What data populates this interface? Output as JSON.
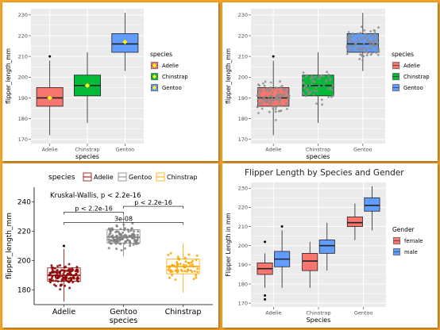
{
  "colors": {
    "page_bg": "#f6a326",
    "panel_bg": "#ffffff",
    "plot_bg": "#ebebeb",
    "grid": "#ffffff",
    "adelie": "#f8766d",
    "chinstrap": "#00ba38",
    "gentoo": "#619cff",
    "mean_marker": "#ffff00",
    "jitter_points": "#8c8c8c",
    "adelie_dark": "#8b0000",
    "gentoo_grey": "#808080",
    "chinstrap_orange": "#ffa500",
    "female": "#f8766d",
    "male": "#00bfc4"
  },
  "chart_data": [
    {
      "type": "box",
      "panel": "top-left",
      "xlabel": "species",
      "ylabel": "flipper_length_mm",
      "categories": [
        "Adelie",
        "Chinstrap",
        "Gentoo"
      ],
      "ylim": [
        168,
        233
      ],
      "yticks": [
        170,
        180,
        190,
        200,
        210,
        220,
        230
      ],
      "grid": true,
      "boxes": [
        {
          "category": "Adelie",
          "whisker_low": 172,
          "q1": 186,
          "median": 190,
          "q3": 195,
          "whisker_high": 208,
          "outliers": [
            210
          ],
          "mean": 190,
          "color": "#f8766d"
        },
        {
          "category": "Chinstrap",
          "whisker_low": 178,
          "q1": 191,
          "median": 196,
          "q3": 201,
          "whisker_high": 212,
          "outliers": [],
          "mean": 196,
          "color": "#00ba38"
        },
        {
          "category": "Gentoo",
          "whisker_low": 203,
          "q1": 212,
          "median": 216,
          "q3": 221,
          "whisker_high": 231,
          "outliers": [],
          "mean": 217,
          "color": "#619cff"
        }
      ],
      "legend": {
        "title": "species",
        "entries": [
          "Adelie",
          "Chinstrap",
          "Gentoo"
        ],
        "position": "right"
      }
    },
    {
      "type": "box",
      "panel": "top-right",
      "xlabel": "species",
      "ylabel": "flipper_length_mm",
      "categories": [
        "Adelie",
        "Chinstrap",
        "Gentoo"
      ],
      "ylim": [
        168,
        233
      ],
      "yticks": [
        170,
        180,
        190,
        200,
        210,
        220,
        230
      ],
      "grid": true,
      "jitter": true,
      "boxes": [
        {
          "category": "Adelie",
          "whisker_low": 172,
          "q1": 186,
          "median": 190,
          "q3": 195,
          "whisker_high": 208,
          "outliers": [
            210
          ],
          "color": "#f8766d"
        },
        {
          "category": "Chinstrap",
          "whisker_low": 178,
          "q1": 191,
          "median": 196,
          "q3": 201,
          "whisker_high": 212,
          "outliers": [],
          "color": "#00ba38"
        },
        {
          "category": "Gentoo",
          "whisker_low": 203,
          "q1": 212,
          "median": 216,
          "q3": 221,
          "whisker_high": 231,
          "outliers": [],
          "color": "#619cff"
        }
      ],
      "legend": {
        "title": "species",
        "entries": [
          "Adelie",
          "Chinstrap",
          "Gentoo"
        ],
        "position": "right"
      }
    },
    {
      "type": "box",
      "panel": "bottom-left",
      "xlabel": "species",
      "ylabel": "flipper_length_mm",
      "categories": [
        "Adelie",
        "Gentoo",
        "Chinstrap"
      ],
      "ylim": [
        170,
        250
      ],
      "yticks": [
        180,
        200,
        220,
        240
      ],
      "grid": false,
      "jitter": true,
      "boxes": [
        {
          "category": "Adelie",
          "whisker_low": 172,
          "q1": 186,
          "median": 190,
          "q3": 195,
          "whisker_high": 208,
          "outliers": [
            210
          ],
          "color": "#8b0000"
        },
        {
          "category": "Gentoo",
          "whisker_low": 203,
          "q1": 212,
          "median": 216,
          "q3": 221,
          "whisker_high": 231,
          "outliers": [],
          "color": "#808080"
        },
        {
          "category": "Chinstrap",
          "whisker_low": 178,
          "q1": 191,
          "median": 196,
          "q3": 201,
          "whisker_high": 212,
          "outliers": [],
          "color": "#ffa500"
        }
      ],
      "annotations": [
        {
          "text": "Kruskal-Wallis, p < 2.2e-16",
          "x": 0.7,
          "y": 243
        },
        {
          "text": "p < 2.2e-16",
          "from": "Adelie",
          "to": "Gentoo",
          "y": 233
        },
        {
          "text": "p < 2.2e-16",
          "from": "Gentoo",
          "to": "Chinstrap",
          "y": 237
        },
        {
          "text": "3e-08",
          "from": "Adelie",
          "to": "Chinstrap",
          "y": 226
        }
      ],
      "legend": {
        "title": "species",
        "entries": [
          "Adelie",
          "Gentoo",
          "Chinstrap"
        ],
        "position": "top"
      }
    },
    {
      "type": "box",
      "panel": "bottom-right",
      "title": "Flipper Length by Species and Gender",
      "xlabel": "Species",
      "ylabel": "Flipper Length in mm",
      "categories": [
        "Adelie",
        "Chinstrap",
        "Gentoo"
      ],
      "ylim": [
        168,
        233
      ],
      "yticks": [
        170,
        180,
        190,
        200,
        210,
        220,
        230
      ],
      "grid": true,
      "series": [
        {
          "name": "female",
          "color": "#f8766d",
          "boxes": [
            {
              "category": "Adelie",
              "whisker_low": 178,
              "q1": 185,
              "median": 188,
              "q3": 191,
              "whisker_high": 196,
              "outliers": [
                172,
                174,
                202
              ]
            },
            {
              "category": "Chinstrap",
              "whisker_low": 178,
              "q1": 187,
              "median": 192,
              "q3": 196,
              "whisker_high": 202,
              "outliers": []
            },
            {
              "category": "Gentoo",
              "whisker_low": 203,
              "q1": 210,
              "median": 212,
              "q3": 215,
              "whisker_high": 222,
              "outliers": []
            }
          ]
        },
        {
          "name": "male",
          "color": "#619cff",
          "boxes": [
            {
              "category": "Adelie",
              "whisker_low": 178,
              "q1": 189,
              "median": 193,
              "q3": 197,
              "whisker_high": 208,
              "outliers": [
                210
              ]
            },
            {
              "category": "Chinstrap",
              "whisker_low": 187,
              "q1": 196,
              "median": 200,
              "q3": 203,
              "whisker_high": 212,
              "outliers": []
            },
            {
              "category": "Gentoo",
              "whisker_low": 208,
              "q1": 218,
              "median": 221,
              "q3": 225,
              "whisker_high": 231,
              "outliers": []
            }
          ]
        }
      ],
      "legend": {
        "title": "Gender",
        "entries": [
          "female",
          "male"
        ],
        "position": "right"
      }
    }
  ]
}
